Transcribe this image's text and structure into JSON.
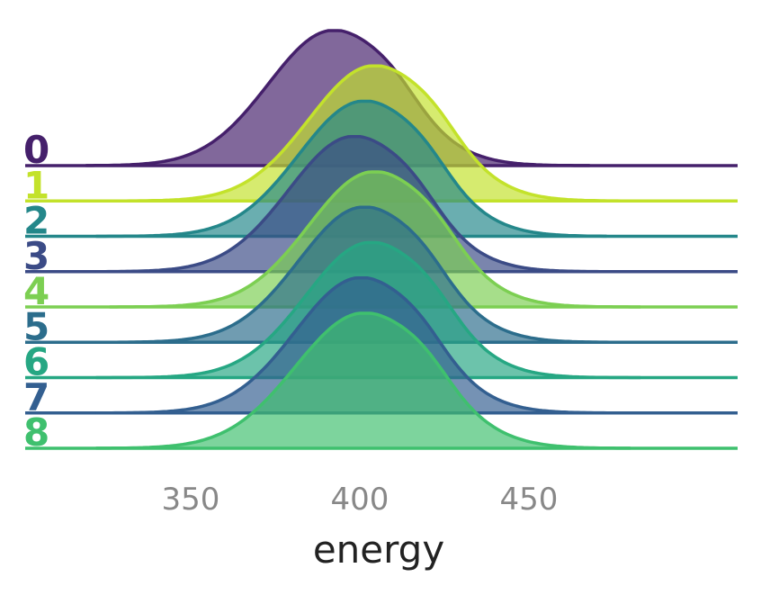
{
  "chart_data": {
    "type": "area",
    "chart_style": "ridgeline density plot",
    "xlabel": "energy",
    "xticks": [
      350,
      400,
      450
    ],
    "xlim": [
      310,
      500
    ],
    "series": [
      {
        "name": "0",
        "color": "#45206b",
        "mode": 392,
        "spread": 19,
        "start": 319,
        "end": 468
      },
      {
        "name": "1",
        "color": "#c3e22b",
        "mode": 404,
        "spread": 19,
        "start": 328,
        "end": 485
      },
      {
        "name": "2",
        "color": "#24878a",
        "mode": 401,
        "spread": 19,
        "start": 322,
        "end": 473
      },
      {
        "name": "3",
        "color": "#3b4b86",
        "mode": 398,
        "spread": 19,
        "start": 322,
        "end": 471
      },
      {
        "name": "4",
        "color": "#7ccf52",
        "mode": 404,
        "spread": 19,
        "start": 326,
        "end": 483
      },
      {
        "name": "5",
        "color": "#2c6d8c",
        "mode": 401,
        "spread": 19,
        "start": 322,
        "end": 484
      },
      {
        "name": "6",
        "color": "#26a783",
        "mode": 403,
        "spread": 19,
        "start": 322,
        "end": 483
      },
      {
        "name": "7",
        "color": "#335f90",
        "mode": 400,
        "spread": 19,
        "start": 322,
        "end": 475
      },
      {
        "name": "8",
        "color": "#3fc06e",
        "mode": 401,
        "spread": 20,
        "start": 322,
        "end": 480
      }
    ],
    "grid": false,
    "legend": "row labels at left"
  }
}
